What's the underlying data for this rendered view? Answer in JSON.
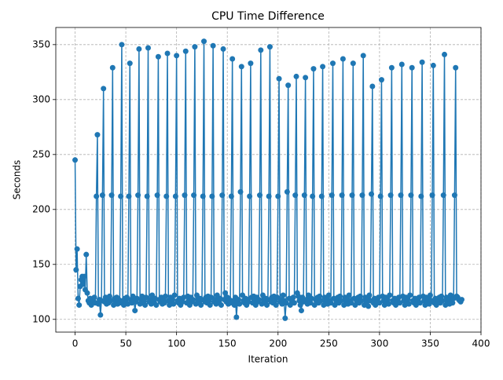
{
  "chart_data": {
    "type": "line",
    "title": "CPU Time Difference",
    "x_label": "Iteration",
    "y_label": "Seconds",
    "color": "#1f77b4",
    "grid": true,
    "xlim": [
      -19,
      400
    ],
    "xticks": [
      0,
      50,
      100,
      150,
      200,
      250,
      300,
      350,
      400
    ],
    "ylim": [
      88.4,
      365.6
    ],
    "yticks": [
      100,
      150,
      200,
      250,
      300,
      350
    ],
    "x": [
      0,
      1,
      2,
      3,
      4,
      5,
      6,
      7,
      8,
      9,
      10,
      11,
      12,
      13,
      14,
      15,
      16,
      17,
      18,
      19,
      20,
      21,
      22,
      23,
      24,
      25,
      26,
      27,
      28,
      29,
      30,
      31,
      32,
      33,
      34,
      35,
      36,
      37,
      38,
      39,
      40,
      41,
      42,
      43,
      44,
      45,
      46,
      47,
      48,
      49,
      50,
      51,
      52,
      53,
      54,
      55,
      56,
      57,
      58,
      59,
      60,
      61,
      62,
      63,
      64,
      65,
      66,
      67,
      68,
      69,
      70,
      71,
      72,
      73,
      74,
      75,
      76,
      77,
      78,
      79,
      80,
      81,
      82,
      83,
      84,
      85,
      86,
      87,
      88,
      89,
      90,
      91,
      92,
      93,
      94,
      95,
      96,
      97,
      98,
      99,
      100,
      101,
      102,
      103,
      104,
      105,
      106,
      107,
      108,
      109,
      110,
      111,
      112,
      113,
      114,
      115,
      116,
      117,
      118,
      119,
      120,
      121,
      122,
      123,
      124,
      125,
      126,
      127,
      128,
      129,
      130,
      131,
      132,
      133,
      134,
      135,
      136,
      137,
      138,
      139,
      140,
      141,
      142,
      143,
      144,
      145,
      146,
      147,
      148,
      149,
      150,
      151,
      152,
      153,
      154,
      155,
      156,
      157,
      158,
      159,
      160,
      161,
      162,
      163,
      164,
      165,
      166,
      167,
      168,
      169,
      170,
      171,
      172,
      173,
      174,
      175,
      176,
      177,
      178,
      179,
      180,
      181,
      182,
      183,
      184,
      185,
      186,
      187,
      188,
      189,
      190,
      191,
      192,
      193,
      194,
      195,
      196,
      197,
      198,
      199,
      200,
      201,
      202,
      203,
      204,
      205,
      206,
      207,
      208,
      209,
      210,
      211,
      212,
      213,
      214,
      215,
      216,
      217,
      218,
      219,
      220,
      221,
      222,
      223,
      224,
      225,
      226,
      227,
      228,
      229,
      230,
      231,
      232,
      233,
      234,
      235,
      236,
      237,
      238,
      239,
      240,
      241,
      242,
      243,
      244,
      245,
      246,
      247,
      248,
      249,
      250,
      251,
      252,
      253,
      254,
      255,
      256,
      257,
      258,
      259,
      260,
      261,
      262,
      263,
      264,
      265,
      266,
      267,
      268,
      269,
      270,
      271,
      272,
      273,
      274,
      275,
      276,
      277,
      278,
      279,
      280,
      281,
      282,
      283,
      284,
      285,
      286,
      287,
      288,
      289,
      290,
      291,
      292,
      293,
      294,
      295,
      296,
      297,
      298,
      299,
      300,
      301,
      302,
      303,
      304,
      305,
      306,
      307,
      308,
      309,
      310,
      311,
      312,
      313,
      314,
      315,
      316,
      317,
      318,
      319,
      320,
      321,
      322,
      323,
      324,
      325,
      326,
      327,
      328,
      329,
      330,
      331,
      332,
      333,
      334,
      335,
      336,
      337,
      338,
      339,
      340,
      341,
      342,
      343,
      344,
      345,
      346,
      347,
      348,
      349,
      350,
      351,
      352,
      353,
      354,
      355,
      356,
      357,
      358,
      359,
      360,
      361,
      362,
      363,
      364,
      365,
      366,
      367,
      368,
      369,
      370,
      371,
      372,
      373,
      374,
      375,
      376,
      377,
      378,
      379,
      380,
      381
    ],
    "values": [
      245,
      145,
      164,
      119,
      113,
      130,
      136,
      139,
      132,
      139,
      127,
      159,
      124,
      117,
      115,
      119,
      113,
      118,
      116,
      120,
      115,
      212,
      268,
      114,
      118,
      104,
      117,
      213,
      310,
      116,
      120,
      114,
      118,
      115,
      121,
      117,
      213,
      329,
      113,
      119,
      116,
      120,
      114,
      118,
      115,
      212,
      350,
      117,
      113,
      119,
      116,
      120,
      114,
      212,
      333,
      118,
      115,
      121,
      117,
      108,
      116,
      119,
      213,
      346,
      114,
      118,
      121,
      115,
      117,
      113,
      120,
      212,
      347,
      116,
      118,
      114,
      122,
      117,
      115,
      119,
      113,
      213,
      339,
      118,
      116,
      120,
      114,
      118,
      115,
      121,
      212,
      342,
      117,
      113,
      120,
      116,
      118,
      114,
      122,
      212,
      340,
      117,
      115,
      119,
      113,
      118,
      116,
      120,
      213,
      344,
      115,
      121,
      117,
      113,
      120,
      116,
      118,
      213,
      348,
      114,
      122,
      117,
      115,
      119,
      113,
      118,
      212,
      353,
      116,
      120,
      115,
      121,
      117,
      113,
      120,
      212,
      349,
      116,
      118,
      114,
      122,
      117,
      115,
      119,
      113,
      213,
      346,
      118,
      124,
      116,
      120,
      114,
      118,
      115,
      212,
      337,
      117,
      113,
      120,
      102,
      116,
      118,
      114,
      216,
      330,
      122,
      117,
      115,
      119,
      113,
      118,
      116,
      212,
      333,
      120,
      115,
      121,
      117,
      113,
      120,
      116,
      118,
      213,
      345,
      114,
      122,
      117,
      115,
      119,
      113,
      118,
      212,
      348,
      116,
      120,
      115,
      121,
      117,
      113,
      120,
      212,
      319,
      116,
      118,
      114,
      122,
      117,
      101,
      115,
      216,
      313,
      119,
      113,
      118,
      116,
      120,
      115,
      213,
      321,
      124,
      121,
      117,
      113,
      108,
      120,
      116,
      213,
      320,
      118,
      114,
      122,
      117,
      115,
      119,
      212,
      328,
      113,
      118,
      116,
      120,
      115,
      121,
      117,
      212,
      330,
      113,
      120,
      116,
      118,
      114,
      122,
      117,
      115,
      213,
      333,
      119,
      113,
      118,
      116,
      120,
      115,
      121,
      117,
      213,
      337,
      113,
      120,
      116,
      118,
      114,
      122,
      117,
      115,
      213,
      333,
      119,
      113,
      118,
      116,
      120,
      115,
      121,
      117,
      213,
      340,
      113,
      120,
      116,
      118,
      112,
      122,
      117,
      214,
      312,
      115,
      119,
      113,
      118,
      116,
      120,
      115,
      212,
      318,
      121,
      117,
      113,
      120,
      116,
      118,
      114,
      122,
      213,
      329,
      117,
      115,
      119,
      113,
      118,
      116,
      120,
      115,
      213,
      332,
      121,
      117,
      113,
      120,
      116,
      118,
      114,
      122,
      213,
      329,
      117,
      115,
      119,
      113,
      118,
      116,
      120,
      115,
      212,
      334,
      121,
      117,
      113,
      120,
      116,
      118,
      114,
      122,
      117,
      213,
      331,
      115,
      119,
      113,
      118,
      116,
      120,
      115,
      121,
      117,
      213,
      341,
      113,
      120,
      116,
      118,
      114,
      122,
      117,
      115,
      119,
      213,
      329,
      121,
      120,
      118,
      117,
      116,
      118
    ]
  }
}
